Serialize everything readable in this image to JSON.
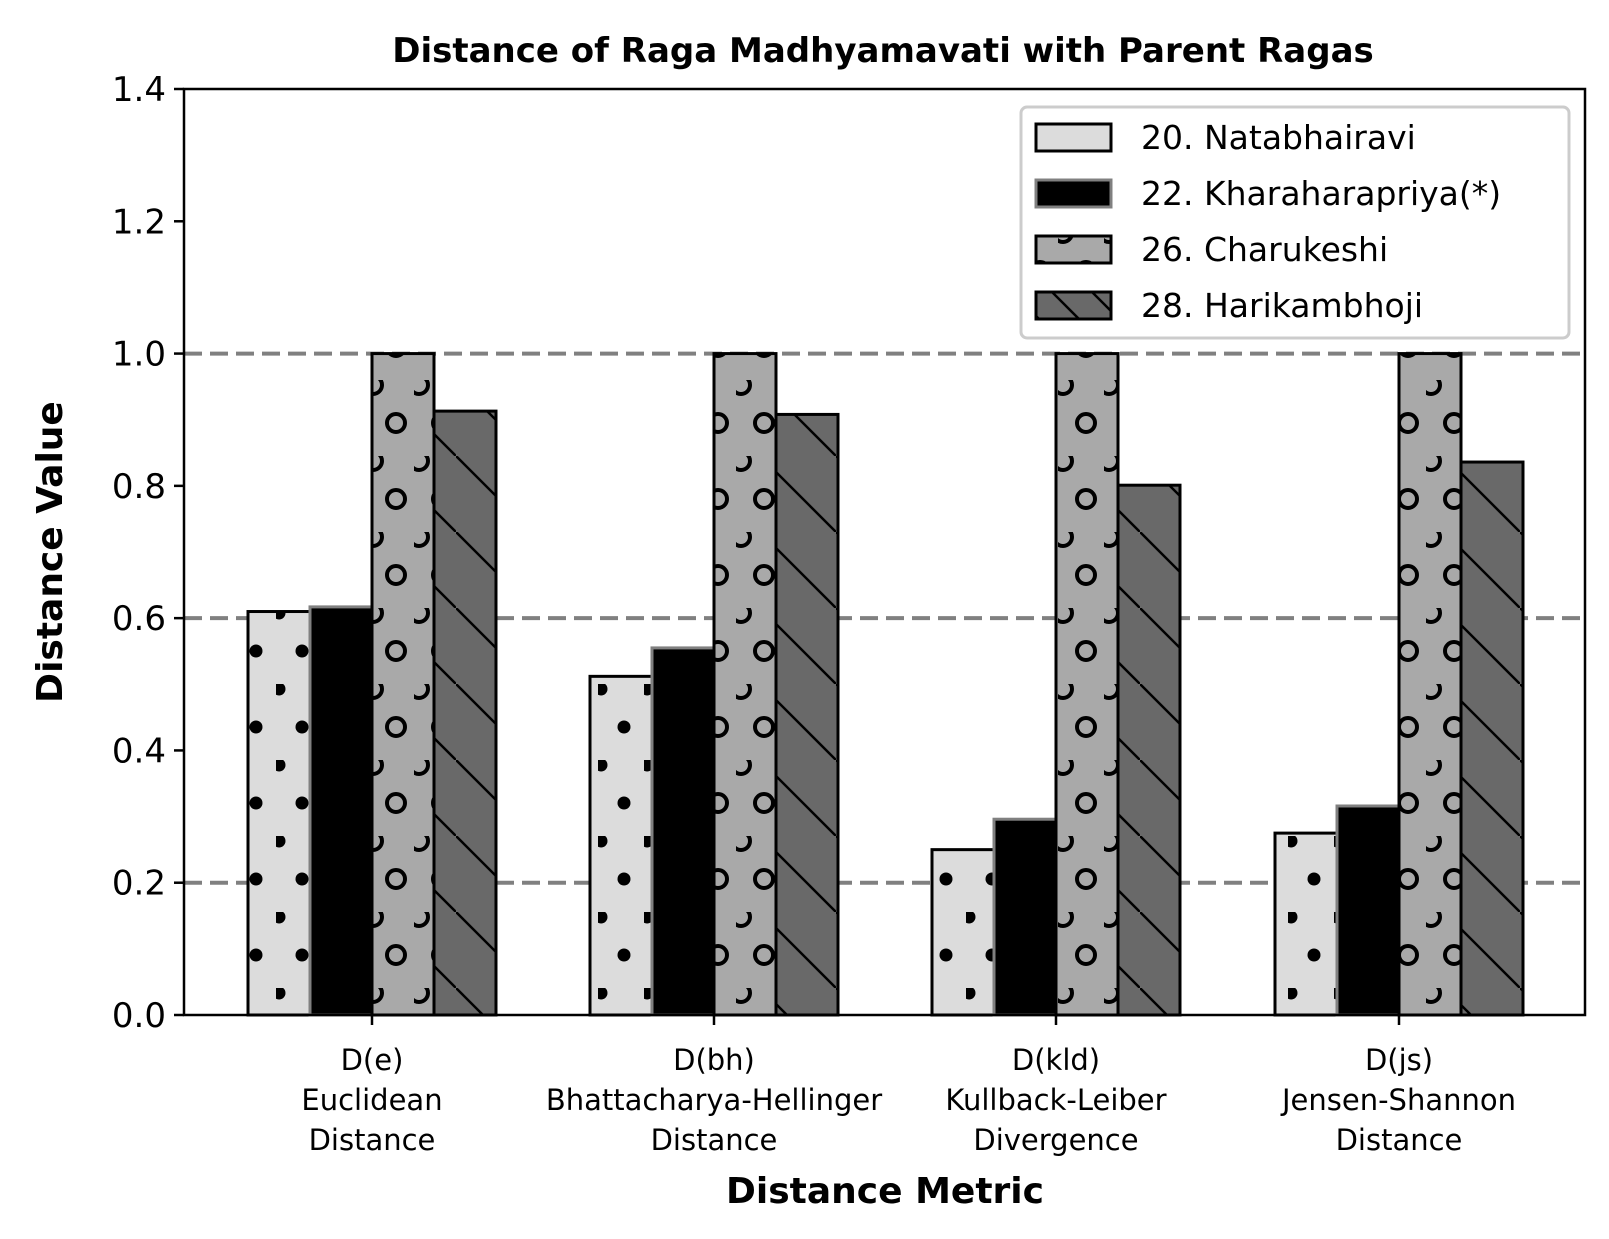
{
  "chart_data": {
    "type": "bar",
    "title": "Distance of Raga Madhyamavati with Parent Ragas",
    "xlabel": "Distance Metric",
    "ylabel": "Distance Value",
    "ylim": [
      0,
      1.4
    ],
    "yticks": [
      "0.0",
      "0.2",
      "0.4",
      "0.6",
      "0.8",
      "1.0",
      "1.2",
      "1.4"
    ],
    "reference_lines": [
      0.2,
      0.6,
      1.0
    ],
    "legend_position": "top-right",
    "categories": [
      [
        "D(e)",
        "Euclidean",
        "Distance"
      ],
      [
        "D(bh)",
        "Bhattacharya-Hellinger",
        "Distance"
      ],
      [
        "D(kld)",
        "Kullback-Leiber",
        "Divergence"
      ],
      [
        "D(js)",
        "Jensen-Shannon",
        "Distance"
      ]
    ],
    "series": [
      {
        "name": "20. Natabhairavi",
        "values": [
          0.61,
          0.512,
          0.25,
          0.275
        ],
        "color": "#dcdcdc",
        "edge": "#000000",
        "hatch": "dots"
      },
      {
        "name": "22. Kharaharapriya(*)",
        "values": [
          0.617,
          0.555,
          0.296,
          0.316
        ],
        "color": "#000000",
        "edge": "#808080",
        "hatch": "none"
      },
      {
        "name": "26. Charukeshi",
        "values": [
          1.0,
          1.0,
          1.0,
          1.0
        ],
        "color": "#a9a9a9",
        "edge": "#000000",
        "hatch": "circles"
      },
      {
        "name": "28. Harikambhoji",
        "values": [
          0.913,
          0.908,
          0.801,
          0.836
        ],
        "color": "#696969",
        "edge": "#000000",
        "hatch": "diagonal"
      }
    ]
  }
}
